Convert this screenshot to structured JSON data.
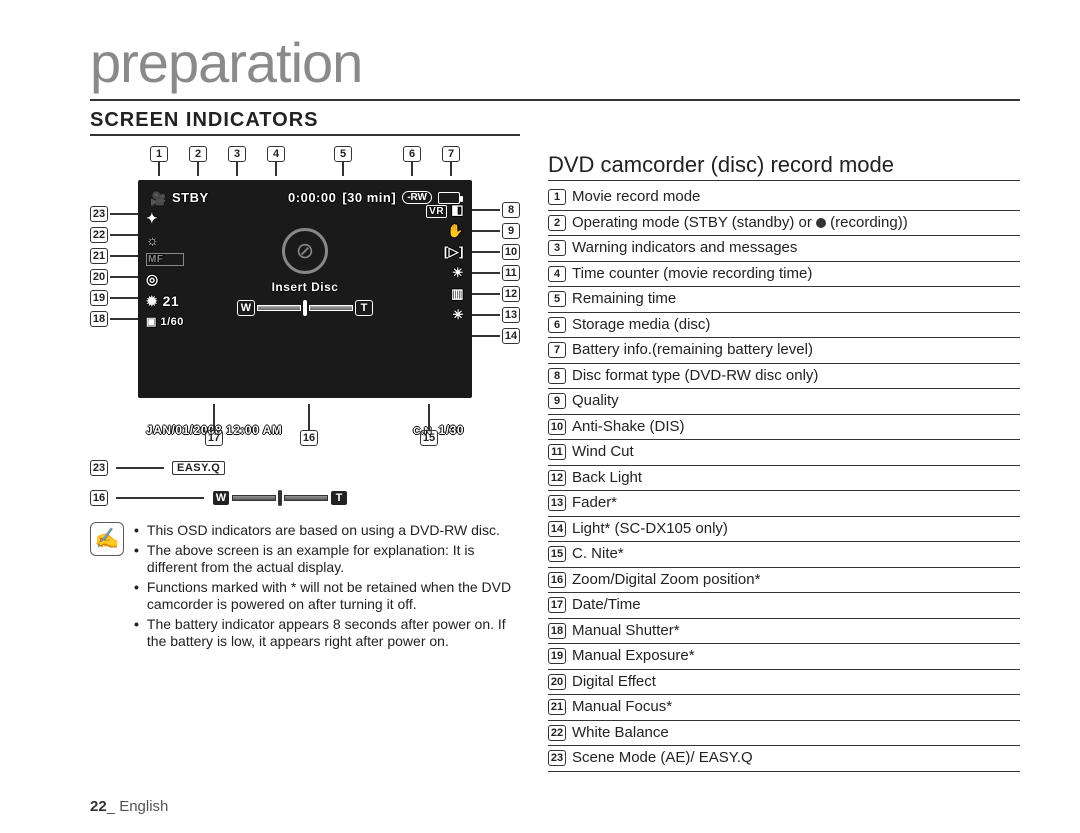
{
  "chapter": "preparation",
  "section": "SCREEN INDICATORS",
  "rightTitle": "DVD camcorder (disc) record mode",
  "indicators": [
    {
      "n": "1",
      "t": "Movie record mode"
    },
    {
      "n": "2",
      "t": "Operating mode (STBY (standby) or ● (recording))"
    },
    {
      "n": "3",
      "t": "Warning indicators and messages"
    },
    {
      "n": "4",
      "t": "Time counter (movie recording time)"
    },
    {
      "n": "5",
      "t": "Remaining time"
    },
    {
      "n": "6",
      "t": "Storage media (disc)"
    },
    {
      "n": "7",
      "t": "Battery info.(remaining battery level)"
    },
    {
      "n": "8",
      "t": "Disc format type (DVD-RW disc only)"
    },
    {
      "n": "9",
      "t": "Quality"
    },
    {
      "n": "10",
      "t": "Anti-Shake (DIS)"
    },
    {
      "n": "11",
      "t": "Wind Cut"
    },
    {
      "n": "12",
      "t": "Back Light"
    },
    {
      "n": "13",
      "t": "Fader*"
    },
    {
      "n": "14",
      "t": "Light* (SC-DX105 only)"
    },
    {
      "n": "15",
      "t": "C. Nite*"
    },
    {
      "n": "16",
      "t": "Zoom/Digital Zoom position*"
    },
    {
      "n": "17",
      "t": "Date/Time"
    },
    {
      "n": "18",
      "t": "Manual Shutter*"
    },
    {
      "n": "19",
      "t": "Manual Exposure*"
    },
    {
      "n": "20",
      "t": "Digital Effect"
    },
    {
      "n": "21",
      "t": "Manual Focus*"
    },
    {
      "n": "22",
      "t": "White Balance"
    },
    {
      "n": "23",
      "t": "Scene Mode (AE)/ EASY.Q"
    }
  ],
  "cam": {
    "stby": "STBY",
    "counter": "0:00:00",
    "remain": "[30 min]",
    "rw": "-RW",
    "vr": "VR",
    "insert": "Insert Disc",
    "datetime": "JAN/01/2008 12:00 AM",
    "cnite": "1/30",
    "expo": "21",
    "shutter": "1/60",
    "zoomW": "W",
    "zoomT": "T",
    "cnBadge": "C.N"
  },
  "topNums": [
    "1",
    "2",
    "3",
    "4",
    "5",
    "6",
    "7"
  ],
  "leftNums": [
    "23",
    "22",
    "21",
    "20",
    "19",
    "18"
  ],
  "rightNums": [
    "8",
    "9",
    "10",
    "11",
    "12",
    "13",
    "14"
  ],
  "botNums": [
    "17",
    "16",
    "15"
  ],
  "legend": {
    "easyq": "EASY.Q",
    "n23": "23",
    "n16": "16"
  },
  "notes": [
    "This OSD indicators are based on using a DVD-RW disc.",
    "The above screen is an example for explanation: It is different from the actual display.",
    "Functions marked with * will not be retained when the DVD camcorder is powered on after turning it off.",
    "The battery indicator appears 8 seconds after power on. If the battery is low, it appears right after power on."
  ],
  "footer": {
    "page": "22",
    "lang": "English"
  }
}
